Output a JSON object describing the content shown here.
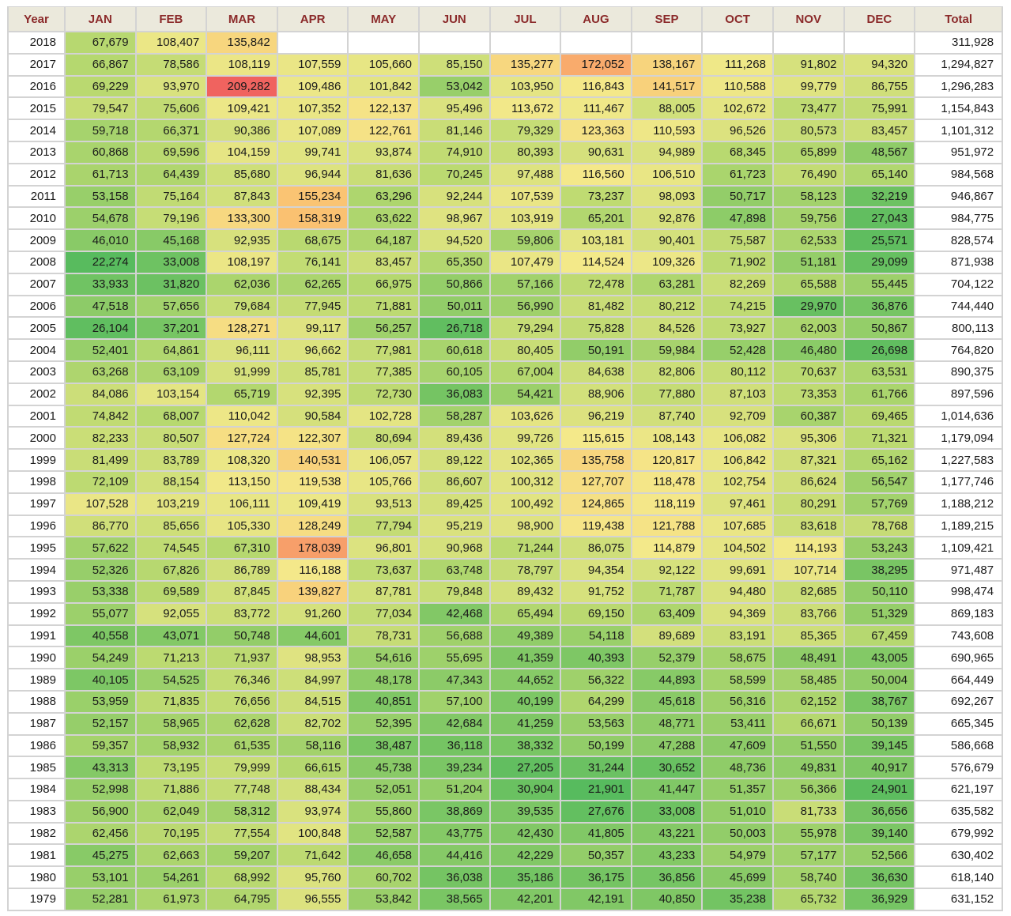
{
  "chart_data": {
    "type": "heatmap",
    "columns": [
      "Year",
      "JAN",
      "FEB",
      "MAR",
      "APR",
      "MAY",
      "JUN",
      "JUL",
      "AUG",
      "SEP",
      "OCT",
      "NOV",
      "DEC",
      "Total"
    ],
    "rows": [
      [
        "2018",
        "67,679",
        "108,407",
        "135,842",
        "",
        "",
        "",
        "",
        "",
        "",
        "",
        "",
        "",
        "311,928"
      ],
      [
        "2017",
        "66,867",
        "78,586",
        "108,119",
        "107,559",
        "105,660",
        "85,150",
        "135,277",
        "172,052",
        "138,167",
        "111,268",
        "91,802",
        "94,320",
        "1,294,827"
      ],
      [
        "2016",
        "69,229",
        "93,970",
        "209,282",
        "109,486",
        "101,842",
        "53,042",
        "103,950",
        "116,843",
        "141,517",
        "110,588",
        "99,779",
        "86,755",
        "1,296,283"
      ],
      [
        "2015",
        "79,547",
        "75,606",
        "109,421",
        "107,352",
        "122,137",
        "95,496",
        "113,672",
        "111,467",
        "88,005",
        "102,672",
        "73,477",
        "75,991",
        "1,154,843"
      ],
      [
        "2014",
        "59,718",
        "66,371",
        "90,386",
        "107,089",
        "122,761",
        "81,146",
        "79,329",
        "123,363",
        "110,593",
        "96,526",
        "80,573",
        "83,457",
        "1,101,312"
      ],
      [
        "2013",
        "60,868",
        "69,596",
        "104,159",
        "99,741",
        "93,874",
        "74,910",
        "80,393",
        "90,631",
        "94,989",
        "68,345",
        "65,899",
        "48,567",
        "951,972"
      ],
      [
        "2012",
        "61,713",
        "64,439",
        "85,680",
        "96,944",
        "81,636",
        "70,245",
        "97,488",
        "116,560",
        "106,510",
        "61,723",
        "76,490",
        "65,140",
        "984,568"
      ],
      [
        "2011",
        "53,158",
        "75,164",
        "87,843",
        "155,234",
        "63,296",
        "92,244",
        "107,539",
        "73,237",
        "98,093",
        "50,717",
        "58,123",
        "32,219",
        "946,867"
      ],
      [
        "2010",
        "54,678",
        "79,196",
        "133,300",
        "158,319",
        "63,622",
        "98,967",
        "103,919",
        "65,201",
        "92,876",
        "47,898",
        "59,756",
        "27,043",
        "984,775"
      ],
      [
        "2009",
        "46,010",
        "45,168",
        "92,935",
        "68,675",
        "64,187",
        "94,520",
        "59,806",
        "103,181",
        "90,401",
        "75,587",
        "62,533",
        "25,571",
        "828,574"
      ],
      [
        "2008",
        "22,274",
        "33,008",
        "108,197",
        "76,141",
        "83,457",
        "65,350",
        "107,479",
        "114,524",
        "109,326",
        "71,902",
        "51,181",
        "29,099",
        "871,938"
      ],
      [
        "2007",
        "33,933",
        "31,820",
        "62,036",
        "62,265",
        "66,975",
        "50,866",
        "57,166",
        "72,478",
        "63,281",
        "82,269",
        "65,588",
        "55,445",
        "704,122"
      ],
      [
        "2006",
        "47,518",
        "57,656",
        "79,684",
        "77,945",
        "71,881",
        "50,011",
        "56,990",
        "81,482",
        "80,212",
        "74,215",
        "29,970",
        "36,876",
        "744,440"
      ],
      [
        "2005",
        "26,104",
        "37,201",
        "128,271",
        "99,117",
        "56,257",
        "26,718",
        "79,294",
        "75,828",
        "84,526",
        "73,927",
        "62,003",
        "50,867",
        "800,113"
      ],
      [
        "2004",
        "52,401",
        "64,861",
        "96,111",
        "96,662",
        "77,981",
        "60,618",
        "80,405",
        "50,191",
        "59,984",
        "52,428",
        "46,480",
        "26,698",
        "764,820"
      ],
      [
        "2003",
        "63,268",
        "63,109",
        "91,999",
        "85,781",
        "77,385",
        "60,105",
        "67,004",
        "84,638",
        "82,806",
        "80,112",
        "70,637",
        "63,531",
        "890,375"
      ],
      [
        "2002",
        "84,086",
        "103,154",
        "65,719",
        "92,395",
        "72,730",
        "36,083",
        "54,421",
        "88,906",
        "77,880",
        "87,103",
        "73,353",
        "61,766",
        "897,596"
      ],
      [
        "2001",
        "74,842",
        "68,007",
        "110,042",
        "90,584",
        "102,728",
        "58,287",
        "103,626",
        "96,219",
        "87,740",
        "92,709",
        "60,387",
        "69,465",
        "1,014,636"
      ],
      [
        "2000",
        "82,233",
        "80,507",
        "127,724",
        "122,307",
        "80,694",
        "89,436",
        "99,726",
        "115,615",
        "108,143",
        "106,082",
        "95,306",
        "71,321",
        "1,179,094"
      ],
      [
        "1999",
        "81,499",
        "83,789",
        "108,320",
        "140,531",
        "106,057",
        "89,122",
        "102,365",
        "135,758",
        "120,817",
        "106,842",
        "87,321",
        "65,162",
        "1,227,583"
      ],
      [
        "1998",
        "72,109",
        "88,154",
        "113,150",
        "119,538",
        "105,766",
        "86,607",
        "100,312",
        "127,707",
        "118,478",
        "102,754",
        "86,624",
        "56,547",
        "1,177,746"
      ],
      [
        "1997",
        "107,528",
        "103,219",
        "106,111",
        "109,419",
        "93,513",
        "89,425",
        "100,492",
        "124,865",
        "118,119",
        "97,461",
        "80,291",
        "57,769",
        "1,188,212"
      ],
      [
        "1996",
        "86,770",
        "85,656",
        "105,330",
        "128,249",
        "77,794",
        "95,219",
        "98,900",
        "119,438",
        "121,788",
        "107,685",
        "83,618",
        "78,768",
        "1,189,215"
      ],
      [
        "1995",
        "57,622",
        "74,545",
        "67,310",
        "178,039",
        "96,801",
        "90,968",
        "71,244",
        "86,075",
        "114,879",
        "104,502",
        "114,193",
        "53,243",
        "1,109,421"
      ],
      [
        "1994",
        "52,326",
        "67,826",
        "86,789",
        "116,188",
        "73,637",
        "63,748",
        "78,797",
        "94,354",
        "92,122",
        "99,691",
        "107,714",
        "38,295",
        "971,487"
      ],
      [
        "1993",
        "53,338",
        "69,589",
        "87,845",
        "139,827",
        "87,781",
        "79,848",
        "89,432",
        "91,752",
        "71,787",
        "94,480",
        "82,685",
        "50,110",
        "998,474"
      ],
      [
        "1992",
        "55,077",
        "92,055",
        "83,772",
        "91,260",
        "77,034",
        "42,468",
        "65,494",
        "69,150",
        "63,409",
        "94,369",
        "83,766",
        "51,329",
        "869,183"
      ],
      [
        "1991",
        "40,558",
        "43,071",
        "50,748",
        "44,601",
        "78,731",
        "56,688",
        "49,389",
        "54,118",
        "89,689",
        "83,191",
        "85,365",
        "67,459",
        "743,608"
      ],
      [
        "1990",
        "54,249",
        "71,213",
        "71,937",
        "98,953",
        "54,616",
        "55,695",
        "41,359",
        "40,393",
        "52,379",
        "58,675",
        "48,491",
        "43,005",
        "690,965"
      ],
      [
        "1989",
        "40,105",
        "54,525",
        "76,346",
        "84,997",
        "48,178",
        "47,343",
        "44,652",
        "56,322",
        "44,893",
        "58,599",
        "58,485",
        "50,004",
        "664,449"
      ],
      [
        "1988",
        "53,959",
        "71,835",
        "76,656",
        "84,515",
        "40,851",
        "57,100",
        "40,199",
        "64,299",
        "45,618",
        "56,316",
        "62,152",
        "38,767",
        "692,267"
      ],
      [
        "1987",
        "52,157",
        "58,965",
        "62,628",
        "82,702",
        "52,395",
        "42,684",
        "41,259",
        "53,563",
        "48,771",
        "53,411",
        "66,671",
        "50,139",
        "665,345"
      ],
      [
        "1986",
        "59,357",
        "58,932",
        "61,535",
        "58,116",
        "38,487",
        "36,118",
        "38,332",
        "50,199",
        "47,288",
        "47,609",
        "51,550",
        "39,145",
        "586,668"
      ],
      [
        "1985",
        "43,313",
        "73,195",
        "79,999",
        "66,615",
        "45,738",
        "39,234",
        "27,205",
        "31,244",
        "30,652",
        "48,736",
        "49,831",
        "40,917",
        "576,679"
      ],
      [
        "1984",
        "52,998",
        "71,886",
        "77,748",
        "88,434",
        "52,051",
        "51,204",
        "30,904",
        "21,901",
        "41,447",
        "51,357",
        "56,366",
        "24,901",
        "621,197"
      ],
      [
        "1983",
        "56,900",
        "62,049",
        "58,312",
        "93,974",
        "55,860",
        "38,869",
        "39,535",
        "27,676",
        "33,008",
        "51,010",
        "81,733",
        "36,656",
        "635,582"
      ],
      [
        "1982",
        "62,456",
        "70,195",
        "77,554",
        "100,848",
        "52,587",
        "43,775",
        "42,430",
        "41,805",
        "43,221",
        "50,003",
        "55,978",
        "39,140",
        "679,992"
      ],
      [
        "1981",
        "45,275",
        "62,663",
        "59,207",
        "71,642",
        "46,658",
        "44,416",
        "42,229",
        "50,357",
        "43,233",
        "54,979",
        "57,177",
        "52,566",
        "630,402"
      ],
      [
        "1980",
        "53,101",
        "54,261",
        "68,992",
        "95,760",
        "60,702",
        "36,038",
        "35,186",
        "36,175",
        "36,856",
        "45,699",
        "58,740",
        "36,630",
        "618,140"
      ],
      [
        "1979",
        "52,281",
        "61,973",
        "64,795",
        "96,555",
        "53,842",
        "38,565",
        "42,201",
        "42,191",
        "40,850",
        "35,238",
        "65,732",
        "36,929",
        "631,152"
      ]
    ],
    "color_scale": {
      "min_value": 21901,
      "max_value": 209282,
      "stops": [
        "#57bb5e",
        "#b9d970",
        "#f4e98a",
        "#fbbd6f",
        "#f0635f"
      ]
    },
    "header_color": "#8b2a2a",
    "header_background": "#ebe9dc",
    "grid_color": "#d3d3d3"
  }
}
